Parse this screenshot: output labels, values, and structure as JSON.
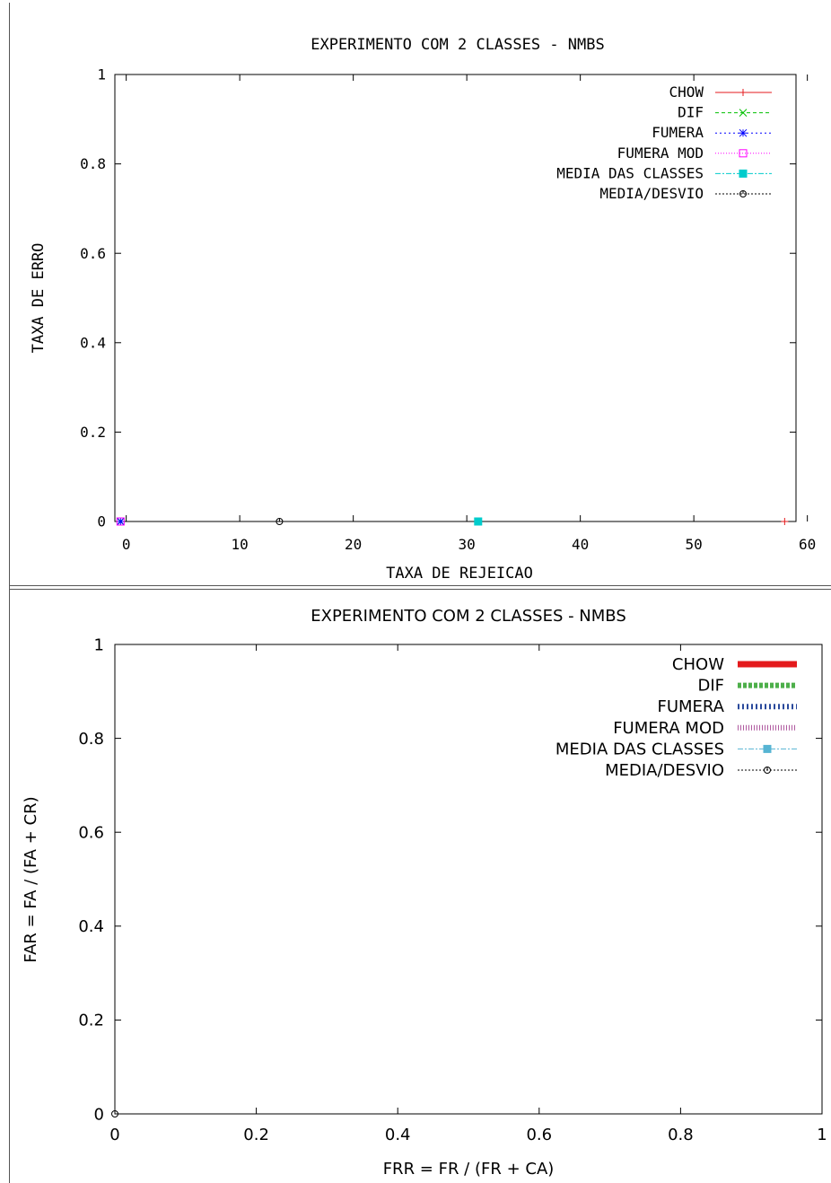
{
  "chart_data": [
    {
      "type": "scatter",
      "title": "EXPERIMENTO COM 2 CLASSES - NMBS",
      "xlabel": "TAXA DE REJEICAO",
      "ylabel": "TAXA DE ERRO",
      "xlim": [
        -1,
        59
      ],
      "ylim": [
        0,
        1
      ],
      "xticks": [
        0,
        10,
        20,
        30,
        40,
        50,
        60
      ],
      "xtick_labels": [
        "0",
        "10",
        "20",
        "30",
        "40",
        "50",
        "60"
      ],
      "yticks": [
        0,
        0.2,
        0.4,
        0.6,
        0.8,
        1
      ],
      "ytick_labels": [
        "0",
        "0.2",
        "0.4",
        "0.6",
        "0.8",
        "1"
      ],
      "grid": false,
      "legend": "top-right",
      "series": [
        {
          "name": "CHOW",
          "color": "#e41a1c",
          "marker": "plus",
          "dash": "",
          "x": [
            58
          ],
          "y": [
            0
          ]
        },
        {
          "name": "DIF",
          "color": "#00c000",
          "marker": "cross",
          "dash": "4,3",
          "x": [
            -0.5
          ],
          "y": [
            0
          ]
        },
        {
          "name": "FUMERA",
          "color": "#0000ff",
          "marker": "star",
          "dash": "2,3",
          "x": [
            -0.5
          ],
          "y": [
            0
          ]
        },
        {
          "name": "FUMERA MOD",
          "color": "#ff00ff",
          "marker": "square-open",
          "dash": "1,2",
          "x": [
            -0.5
          ],
          "y": [
            0
          ]
        },
        {
          "name": "MEDIA DAS CLASSES",
          "color": "#00cccc",
          "marker": "square-filled",
          "dash": "6,2,2,2",
          "x": [
            31
          ],
          "y": [
            0
          ]
        },
        {
          "name": "MEDIA/DESVIO",
          "color": "#000000",
          "marker": "circle-open",
          "dash": "2,2",
          "x": [
            13.5
          ],
          "y": [
            0
          ]
        }
      ]
    },
    {
      "type": "scatter",
      "title": "EXPERIMENTO COM 2 CLASSES - NMBS",
      "xlabel": "FRR = FR / (FR + CA)",
      "ylabel": "FAR = FA / (FA + CR)",
      "xlim": [
        0,
        1
      ],
      "ylim": [
        0,
        1
      ],
      "xticks": [
        0,
        0.2,
        0.4,
        0.6,
        0.8,
        1
      ],
      "xtick_labels": [
        "0",
        "0.2",
        "0.4",
        "0.6",
        "0.8",
        "1"
      ],
      "yticks": [
        0,
        0.2,
        0.4,
        0.6,
        0.8,
        1
      ],
      "ytick_labels": [
        "0",
        "0.2",
        "0.4",
        "0.6",
        "0.8",
        "1"
      ],
      "grid": false,
      "legend": "top-right",
      "series": [
        {
          "name": "CHOW",
          "color": "#e41a1c",
          "style": "thick",
          "x": [],
          "y": []
        },
        {
          "name": "DIF",
          "color": "#4daf4a",
          "style": "dashes",
          "x": [],
          "y": []
        },
        {
          "name": "FUMERA",
          "color": "#2b4a9c",
          "style": "ticks",
          "x": [],
          "y": []
        },
        {
          "name": "FUMERA MOD",
          "color": "#b05aa0",
          "style": "fine-ticks",
          "x": [],
          "y": []
        },
        {
          "name": "MEDIA DAS CLASSES",
          "color": "#56b4d3",
          "style": "dashdot-square",
          "x": [],
          "y": []
        },
        {
          "name": "MEDIA/DESVIO",
          "color": "#000000",
          "style": "dotted-circle",
          "x": [
            0
          ],
          "y": [
            0
          ]
        }
      ]
    }
  ]
}
